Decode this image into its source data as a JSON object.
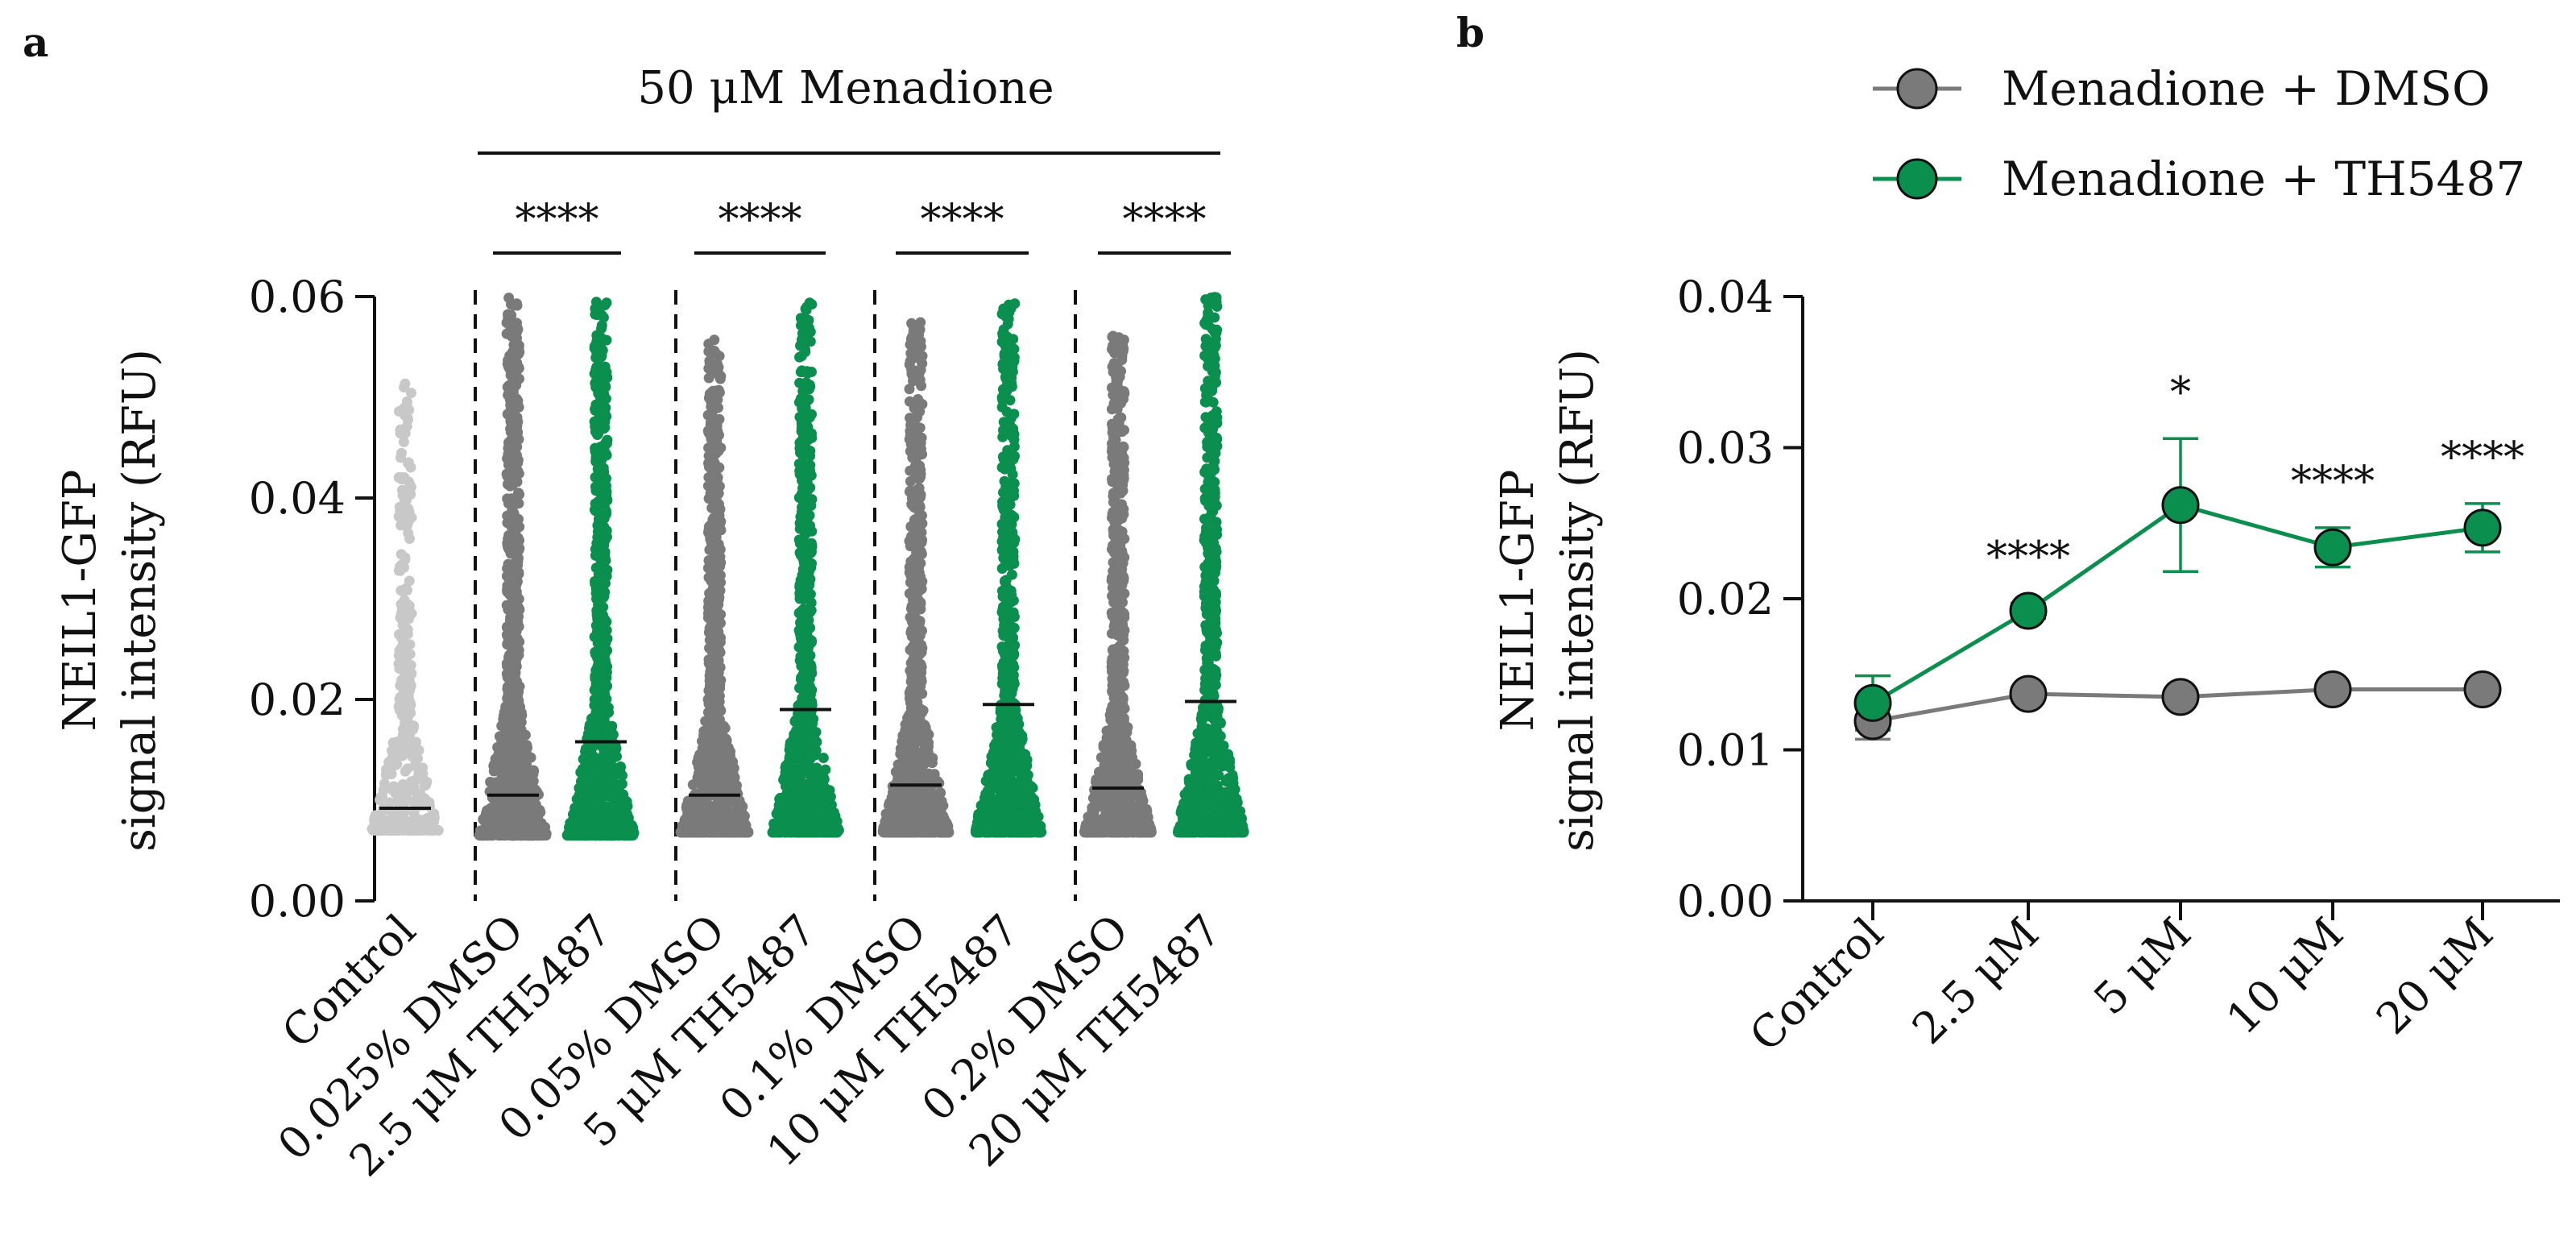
{
  "colors": {
    "control": "#c8c8c8",
    "dmso": "#7a7a7a",
    "th5487": "#0a8f4e",
    "axis": "#111111"
  },
  "chart_data": [
    {
      "panel": "a",
      "type": "scatter",
      "subtype": "dot-strip with median lines",
      "treatment_header": "50 μM Menadione",
      "ylabel": [
        "NEIL1-GFP",
        "signal intensity (RFU)"
      ],
      "ylim": [
        0.0,
        0.06
      ],
      "yticks": [
        "0.00",
        "0.02",
        "0.04",
        "0.06"
      ],
      "ytick_values": [
        0.0,
        0.02,
        0.04,
        0.06
      ],
      "groups": [
        {
          "name": "Control",
          "label": [
            "Control"
          ],
          "color_key": "control",
          "median": 0.0092,
          "min": 0.007,
          "max": 0.052
        },
        {
          "name": "0.025% DMSO",
          "label": [
            "0.025% DMSO"
          ],
          "color_key": "dmso",
          "median": 0.0105,
          "min": 0.0065,
          "max": 0.06
        },
        {
          "name": "2.5 μM TH5487",
          "label": [
            "2.5 μM TH5487"
          ],
          "color_key": "th5487",
          "median": 0.0158,
          "min": 0.0065,
          "max": 0.0595
        },
        {
          "name": "0.05% DMSO",
          "label": [
            "0.05% DMSO"
          ],
          "color_key": "dmso",
          "median": 0.0105,
          "min": 0.0068,
          "max": 0.056
        },
        {
          "name": "5 μM TH5487",
          "label": [
            "5 μM TH5487"
          ],
          "color_key": "th5487",
          "median": 0.019,
          "min": 0.0068,
          "max": 0.0595
        },
        {
          "name": "0.1% DMSO",
          "label": [
            "0.1% DMSO"
          ],
          "color_key": "dmso",
          "median": 0.0115,
          "min": 0.0068,
          "max": 0.0575
        },
        {
          "name": "10 μM TH5487",
          "label": [
            "10 μM TH5487"
          ],
          "color_key": "th5487",
          "median": 0.0195,
          "min": 0.0068,
          "max": 0.0595
        },
        {
          "name": "0.2% DMSO",
          "label": [
            "0.2% DMSO"
          ],
          "color_key": "dmso",
          "median": 0.0112,
          "min": 0.0068,
          "max": 0.0565
        },
        {
          "name": "20 μM TH5487",
          "label": [
            "20 μM TH5487"
          ],
          "color_key": "th5487",
          "median": 0.0198,
          "min": 0.0068,
          "max": 0.06
        }
      ],
      "significance": [
        "****",
        "****",
        "****",
        "****"
      ]
    },
    {
      "panel": "b",
      "type": "line",
      "ylabel": [
        "NEIL1-GFP",
        "signal intensity (RFU)"
      ],
      "ylim": [
        0.0,
        0.04
      ],
      "yticks": [
        "0.00",
        "0.01",
        "0.02",
        "0.03",
        "0.04"
      ],
      "ytick_values": [
        0.0,
        0.01,
        0.02,
        0.03,
        0.04
      ],
      "categories": [
        "Control",
        "2.5 μM",
        "5 μM",
        "10 μM",
        "20 μM"
      ],
      "legend_position": "top",
      "series": [
        {
          "name": "Menadione + DMSO",
          "color_key": "dmso",
          "values": [
            0.0119,
            0.0137,
            0.0135,
            0.014,
            0.014
          ],
          "err": [
            0.0012,
            0.0004,
            0.0004,
            0.0003,
            0.0003
          ]
        },
        {
          "name": "Menadione + TH5487",
          "color_key": "th5487",
          "values": [
            0.0131,
            0.0192,
            0.0262,
            0.0234,
            0.0247
          ],
          "err": [
            0.0018,
            0.0005,
            0.0044,
            0.0013,
            0.0016
          ]
        }
      ],
      "significance": [
        "",
        "****",
        "*",
        "****",
        "****"
      ]
    }
  ]
}
